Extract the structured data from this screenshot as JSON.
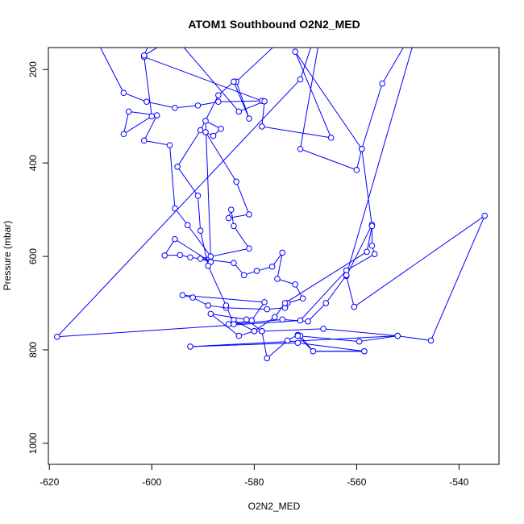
{
  "chart_data": {
    "type": "line",
    "title": "ATOM1 Southbound O2N2_MED",
    "xlabel": "O2N2_MED",
    "ylabel": "Pressure (mbar)",
    "x_ticks": [
      -620,
      -600,
      -580,
      -560,
      -540
    ],
    "y_ticks": [
      200,
      400,
      600,
      800,
      1000
    ],
    "xlim": [
      -620.2,
      -532.2
    ],
    "ylim": [
      1045,
      153
    ],
    "y_reversed": true,
    "grid": false,
    "legend": "none",
    "series_color": "#0000ff",
    "series": [
      {
        "values": [
          [
            -613,
            90
          ],
          [
            -605.5,
            250
          ],
          [
            -601,
            269
          ],
          [
            -595.5,
            282
          ],
          [
            -591,
            277
          ],
          [
            -587,
            269
          ],
          [
            -578.5,
            267
          ],
          [
            -601.5,
            173
          ],
          [
            -600,
            300
          ],
          [
            -605.5,
            338
          ],
          [
            -604.5,
            290
          ],
          [
            -599,
            298
          ],
          [
            -601.5,
            352
          ],
          [
            -596.5,
            362
          ],
          [
            -595.5,
            497
          ],
          [
            -593,
            533
          ],
          [
            -588.5,
            600
          ],
          [
            -589.5,
            310
          ],
          [
            -586.5,
            327
          ],
          [
            -588,
            342
          ],
          [
            -589.5,
            334
          ],
          [
            -583.5,
            440
          ],
          [
            -581,
            510
          ],
          [
            -585,
            518
          ],
          [
            -584.5,
            500
          ],
          [
            -584,
            535
          ],
          [
            -581,
            583
          ],
          [
            -590.5,
            605
          ],
          [
            -588.5,
            612
          ],
          [
            -595.5,
            563
          ],
          [
            -597.5,
            598
          ],
          [
            -594.5,
            597
          ],
          [
            -592.5,
            602
          ],
          [
            -584,
            614
          ],
          [
            -582,
            640
          ],
          [
            -579.5,
            631
          ],
          [
            -576.5,
            622
          ],
          [
            -574.5,
            592
          ],
          [
            -575.5,
            648
          ],
          [
            -572,
            660
          ],
          [
            -570.5,
            690
          ],
          [
            -573.5,
            700
          ],
          [
            -574,
            710
          ],
          [
            -577.5,
            713
          ],
          [
            -585.5,
            710
          ],
          [
            -589,
            705
          ],
          [
            -592,
            688
          ],
          [
            -594,
            683
          ],
          [
            -578,
            698
          ],
          [
            -580.5,
            737
          ],
          [
            -585,
            745
          ],
          [
            -584,
            736
          ],
          [
            -580,
            760
          ],
          [
            -583,
            770
          ],
          [
            -588.5,
            723
          ],
          [
            -581.5,
            735
          ],
          [
            -578.5,
            760
          ],
          [
            -577.5,
            818
          ],
          [
            -573.5,
            780
          ],
          [
            -571.5,
            768
          ],
          [
            -571,
            770
          ],
          [
            -568.5,
            803
          ],
          [
            -558.5,
            803
          ],
          [
            -571.5,
            785
          ],
          [
            -592.5,
            793
          ],
          [
            -552,
            770
          ],
          [
            -545.5,
            780
          ],
          [
            -535,
            513
          ],
          [
            -560.5,
            708
          ],
          [
            -562,
            642
          ],
          [
            -557,
            532
          ],
          [
            -557,
            577
          ],
          [
            -556.5,
            595
          ],
          [
            -562,
            630
          ],
          [
            -571,
            737
          ],
          [
            -618.5,
            772
          ],
          [
            -571,
            221
          ],
          [
            -566,
            55
          ],
          [
            -571,
            370
          ],
          [
            -560,
            415
          ],
          [
            -559,
            370
          ],
          [
            -572,
            162
          ],
          [
            -565,
            346
          ],
          [
            -578.5,
            322
          ],
          [
            -578,
            268
          ],
          [
            -583,
            290
          ],
          [
            -598.5,
            92
          ],
          [
            -601.5,
            170
          ],
          [
            -588,
            80
          ],
          [
            -568.5,
            72
          ],
          [
            -583.5,
            226
          ],
          [
            -581,
            305
          ],
          [
            -584,
            226
          ],
          [
            -587,
            255
          ],
          [
            -590.5,
            330
          ],
          [
            -595,
            408
          ],
          [
            -591,
            470
          ],
          [
            -590.5,
            545
          ],
          [
            -589,
            620
          ],
          [
            -585.5,
            705
          ],
          [
            -584,
            745
          ],
          [
            -574.5,
            735
          ],
          [
            -569.5,
            739
          ],
          [
            -566,
            700
          ],
          [
            -562,
            640
          ],
          [
            -547.5,
            90
          ],
          [
            -555,
            230
          ],
          [
            -559,
            370
          ],
          [
            -557,
            535
          ],
          [
            -558,
            590
          ],
          [
            -574,
            700
          ],
          [
            -576,
            730
          ],
          [
            -580,
            760
          ],
          [
            -578.5,
            760
          ],
          [
            -566.5,
            755
          ],
          [
            -552,
            770
          ],
          [
            -559.5,
            782
          ],
          [
            -571.5,
            770
          ],
          [
            -568.5,
            803
          ],
          [
            -558.5,
            803
          ]
        ]
      }
    ]
  }
}
